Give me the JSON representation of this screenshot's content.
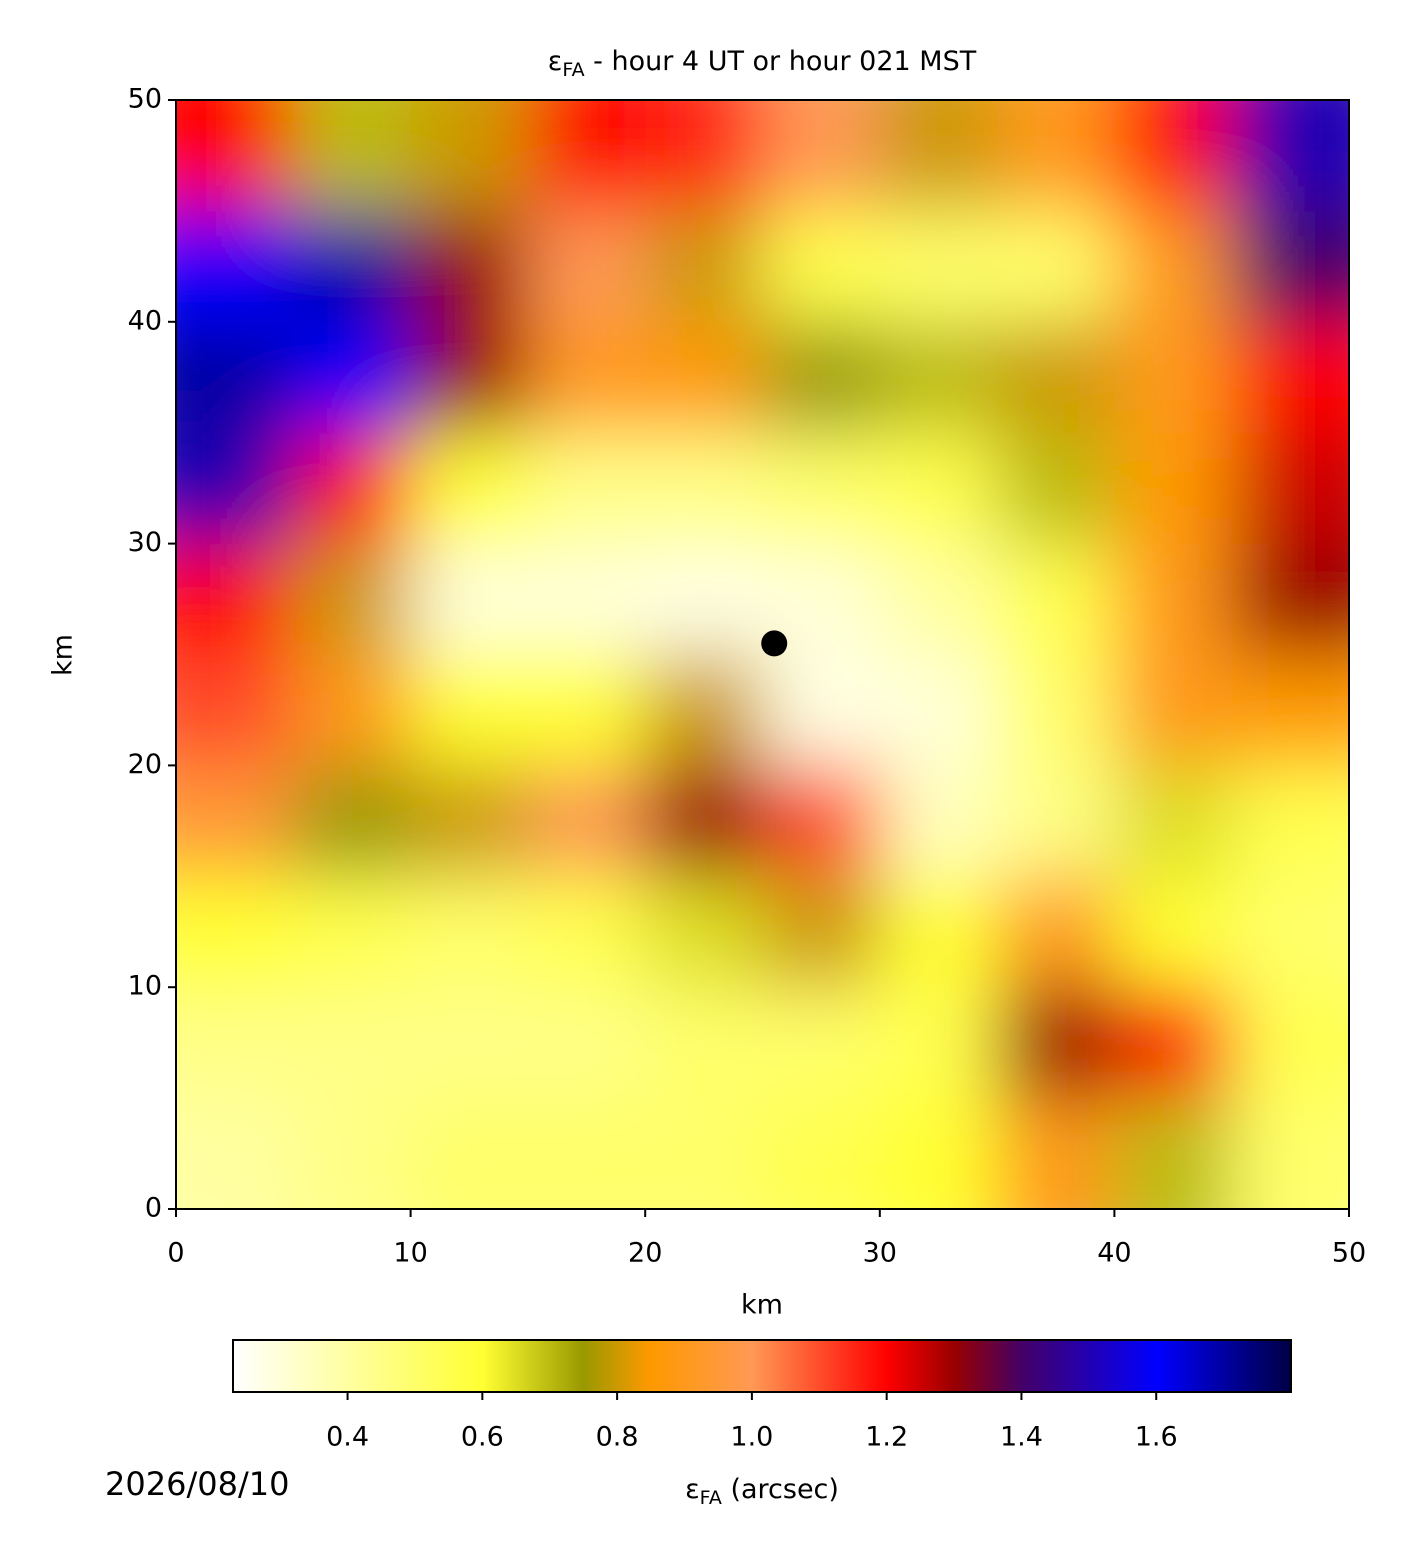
{
  "chart_data": {
    "type": "heatmap",
    "title": {
      "symbol": "ε",
      "subscript": "FA",
      "text": " - hour 4 UT or hour 021 MST"
    },
    "xlabel": "km",
    "ylabel": "km",
    "xlim": [
      0,
      50
    ],
    "ylim": [
      0,
      50
    ],
    "xticks": [
      0,
      10,
      20,
      30,
      40,
      50
    ],
    "yticks": [
      0,
      10,
      20,
      30,
      40,
      50
    ],
    "x": [
      2.5,
      7.5,
      12.5,
      17.5,
      22.5,
      27.5,
      32.5,
      37.5,
      42.5,
      47.5
    ],
    "y": [
      2.5,
      7.5,
      12.5,
      17.5,
      22.5,
      27.5,
      32.5,
      37.5,
      42.5,
      47.5
    ],
    "z": [
      [
        0.4,
        0.45,
        0.5,
        0.5,
        0.5,
        0.55,
        0.6,
        0.9,
        0.7,
        0.5
      ],
      [
        0.45,
        0.45,
        0.45,
        0.45,
        0.5,
        0.5,
        0.55,
        1.3,
        1.2,
        0.55
      ],
      [
        0.6,
        0.55,
        0.5,
        0.55,
        0.65,
        0.8,
        0.6,
        0.9,
        0.6,
        0.5
      ],
      [
        0.95,
        0.75,
        0.8,
        1.0,
        1.3,
        1.1,
        0.35,
        0.45,
        0.65,
        0.55
      ],
      [
        1.1,
        0.9,
        0.6,
        0.6,
        0.8,
        0.28,
        0.3,
        0.5,
        0.9,
        0.85
      ],
      [
        1.2,
        0.8,
        0.3,
        0.3,
        0.28,
        0.3,
        0.4,
        0.55,
        0.9,
        1.3
      ],
      [
        1.5,
        1.2,
        0.6,
        0.45,
        0.45,
        0.5,
        0.55,
        0.7,
        0.85,
        1.25
      ],
      [
        1.7,
        1.6,
        1.3,
        0.9,
        0.85,
        0.75,
        0.7,
        0.8,
        0.9,
        1.2
      ],
      [
        1.6,
        1.7,
        1.3,
        1.0,
        0.8,
        0.55,
        0.5,
        0.5,
        0.9,
        1.4
      ],
      [
        1.2,
        0.7,
        0.8,
        1.2,
        1.15,
        1.0,
        0.8,
        0.9,
        1.2,
        1.5
      ]
    ],
    "marker": {
      "x": 25.5,
      "y": 25.5,
      "color": "#000000"
    },
    "colorbar": {
      "label": {
        "symbol": "ε",
        "subscript": "FA",
        "text": " (arcsec)"
      },
      "lim": [
        0.23,
        1.8
      ],
      "ticks": [
        0.4,
        0.6,
        0.8,
        {
          "value": 1,
          "label": "1.0"
        },
        1.2,
        1.4,
        1.6
      ]
    },
    "colorscale": [
      {
        "value": 0.23,
        "color": "#ffffff"
      },
      {
        "value": 0.6,
        "color": "#ffff33"
      },
      {
        "value": 0.75,
        "color": "#999900"
      },
      {
        "value": 0.85,
        "color": "#ff9900"
      },
      {
        "value": 1.0,
        "color": "#ff9955"
      },
      {
        "value": 1.2,
        "color": "#ff0000"
      },
      {
        "value": 1.3,
        "color": "#990000"
      },
      {
        "value": 1.4,
        "color": "#440066"
      },
      {
        "value": 1.6,
        "color": "#0000ff"
      },
      {
        "value": 1.8,
        "color": "#000044"
      }
    ],
    "date": "2026/08/10"
  }
}
